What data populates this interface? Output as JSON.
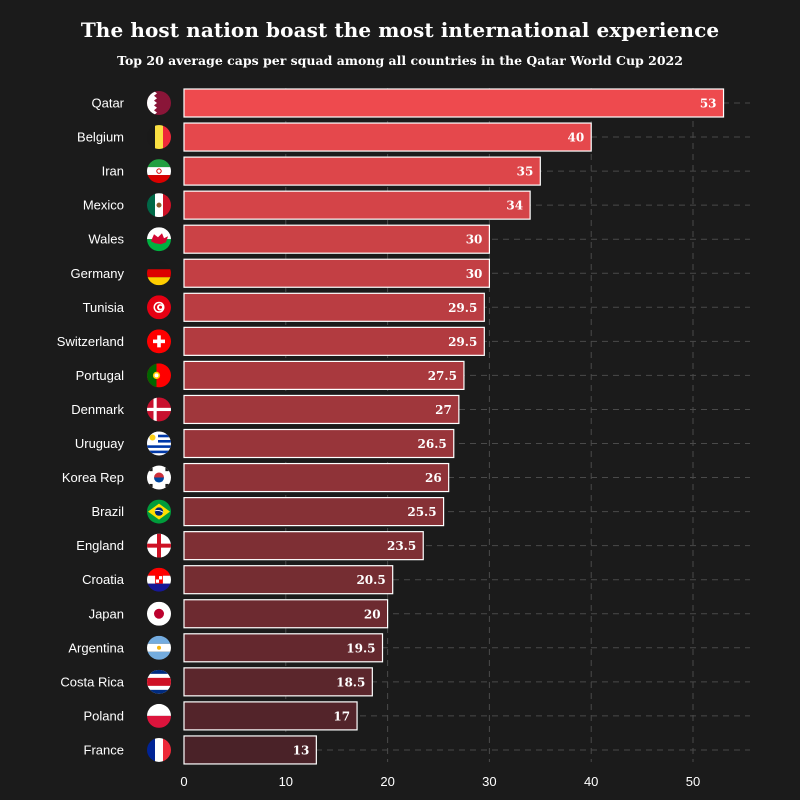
{
  "title": "The host nation boast the most international experience",
  "subtitle": "Top 20 average caps per squad among all countries in the Qatar World Cup 2022",
  "colors": {
    "background": "#1b1b1b",
    "bar_top": "#ee4a4e",
    "bar_bottom": "#4a2228",
    "bar_border": "#ffffff",
    "grid": "#4a4a4a"
  },
  "chart_data": {
    "type": "bar",
    "orientation": "horizontal",
    "categories": [
      "Qatar",
      "Belgium",
      "Iran",
      "Mexico",
      "Wales",
      "Germany",
      "Tunisia",
      "Switzerland",
      "Portugal",
      "Denmark",
      "Uruguay",
      "Korea Rep",
      "Brazil",
      "England",
      "Croatia",
      "Japan",
      "Argentina",
      "Costa Rica",
      "Poland",
      "France"
    ],
    "values": [
      53,
      40,
      35,
      34,
      30,
      30,
      29.5,
      29.5,
      27.5,
      27,
      26.5,
      26,
      25.5,
      23.5,
      20.5,
      20,
      19.5,
      18.5,
      17,
      13
    ],
    "value_labels": [
      "53",
      "40",
      "35",
      "34",
      "30",
      "30",
      "29.5",
      "29.5",
      "27.5",
      "27",
      "26.5",
      "26",
      "25.5",
      "23.5",
      "20.5",
      "20",
      "19.5",
      "18.5",
      "17",
      "13"
    ],
    "xlim": [
      0,
      55
    ],
    "xticks": [
      0,
      10,
      20,
      30,
      40,
      50
    ],
    "grid": true,
    "grid_style": "dashed",
    "xlabel": "",
    "ylabel": "",
    "flag_icons": [
      "qatar-flag-icon",
      "belgium-flag-icon",
      "iran-flag-icon",
      "mexico-flag-icon",
      "wales-flag-icon",
      "germany-flag-icon",
      "tunisia-flag-icon",
      "switzerland-flag-icon",
      "portugal-flag-icon",
      "denmark-flag-icon",
      "uruguay-flag-icon",
      "korea-rep-flag-icon",
      "brazil-flag-icon",
      "england-flag-icon",
      "croatia-flag-icon",
      "japan-flag-icon",
      "argentina-flag-icon",
      "costa-rica-flag-icon",
      "poland-flag-icon",
      "france-flag-icon"
    ]
  }
}
